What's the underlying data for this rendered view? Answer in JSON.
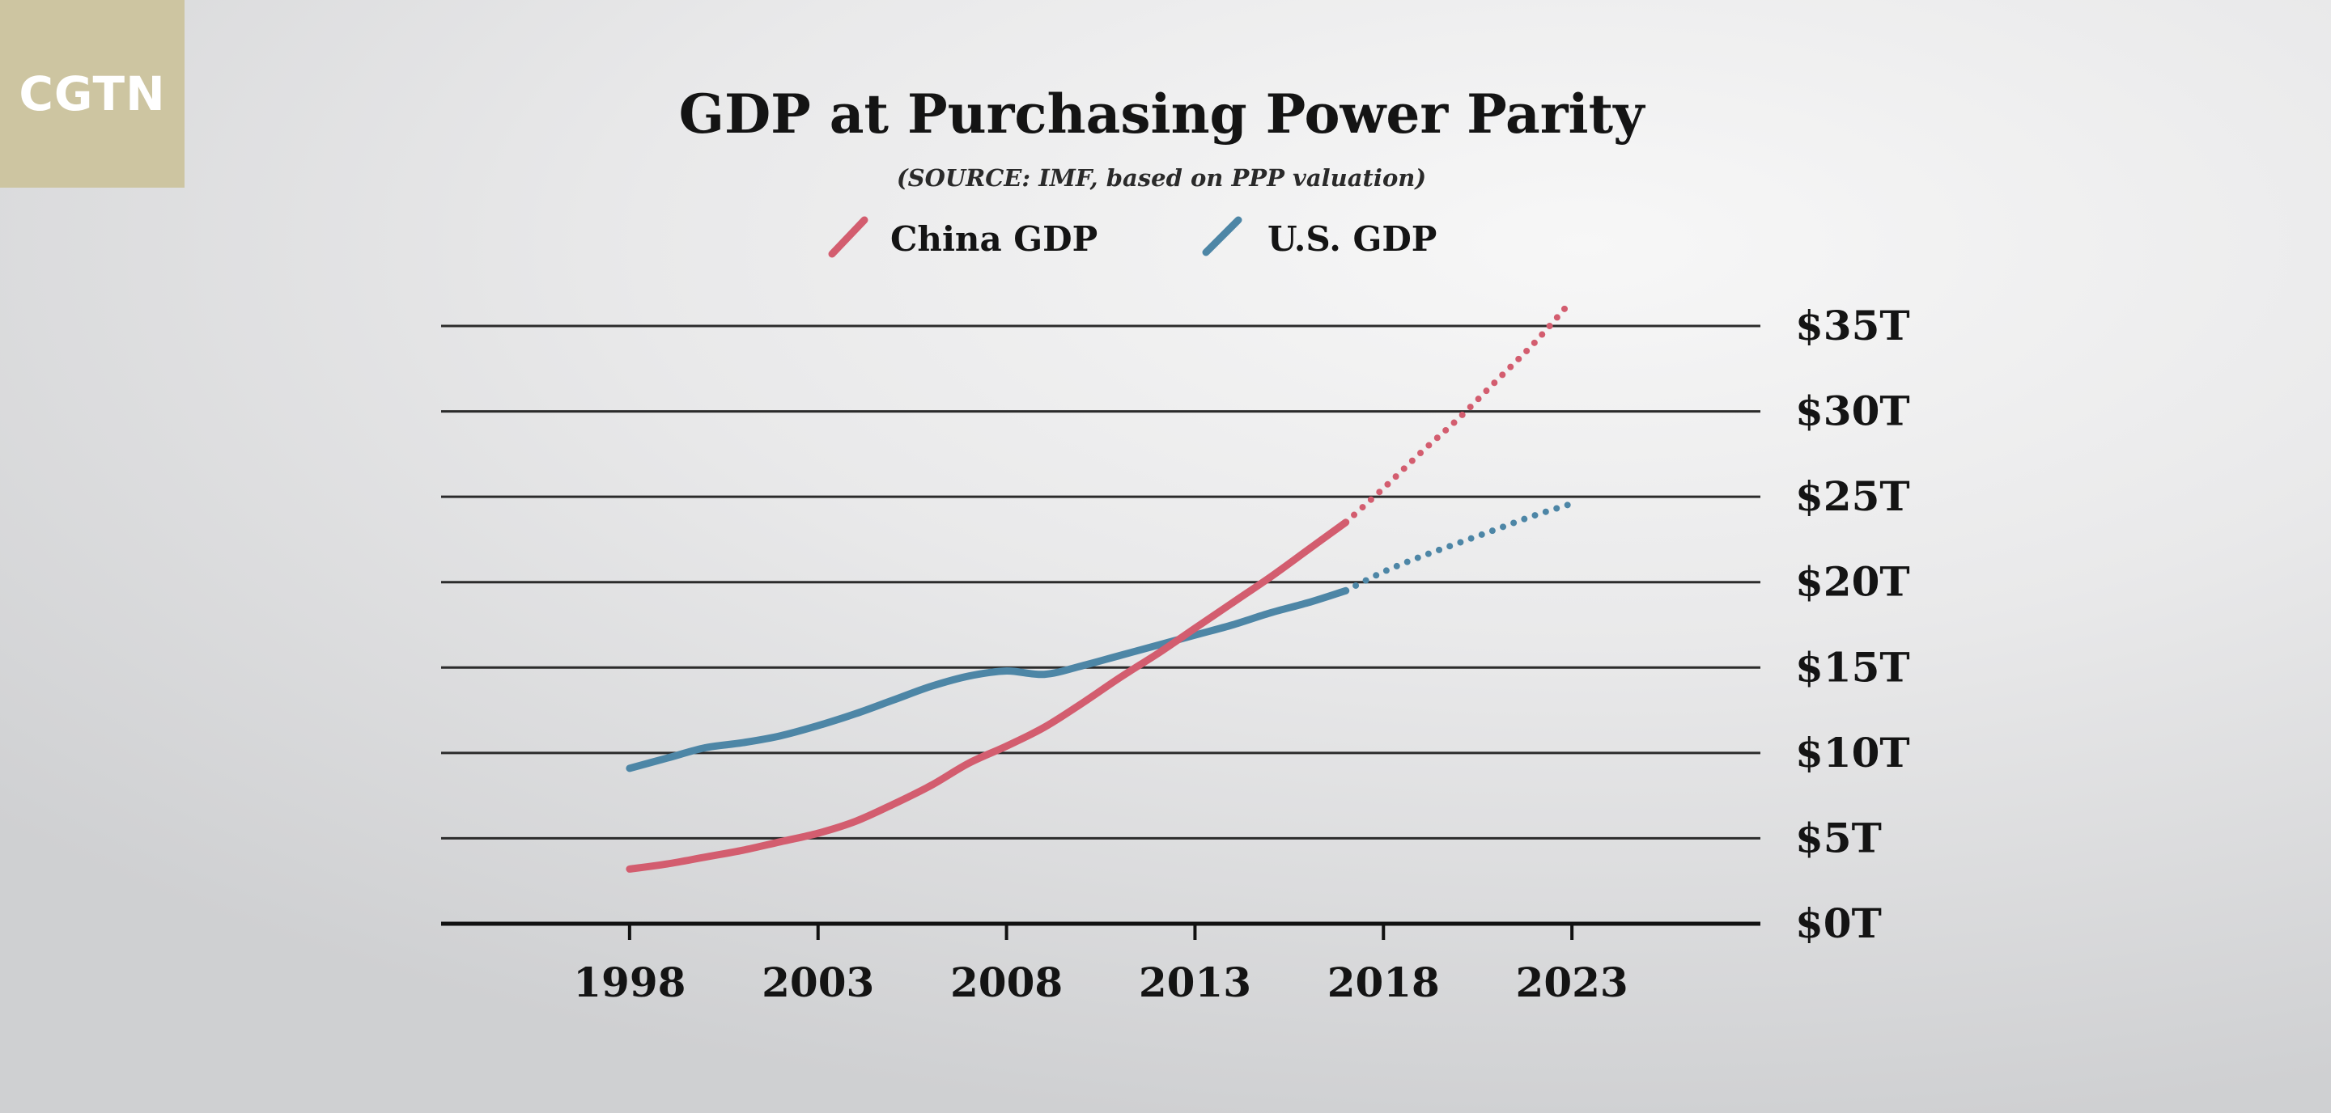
{
  "logo": {
    "text": "CGTN"
  },
  "colors": {
    "china": "#d35d6f",
    "us": "#4d86a6",
    "logo_bg": "#cdc5a1"
  },
  "chart_data": {
    "type": "line",
    "title": "GDP at Purchasing Power Parity",
    "subtitle": "(SOURCE: IMF, based on PPP valuation)",
    "xlabel": "",
    "ylabel": "",
    "x_ticks": [
      1998,
      2003,
      2008,
      2013,
      2018,
      2023
    ],
    "xlim": [
      1993,
      2028
    ],
    "y_ticks": [
      0,
      5,
      10,
      15,
      20,
      25,
      30,
      35
    ],
    "y_tick_labels": [
      "$0T",
      "$5T",
      "$10T",
      "$15T",
      "$20T",
      "$25T",
      "$30T",
      "$35T"
    ],
    "ylim": [
      0,
      35
    ],
    "grid": true,
    "legend_position": "top",
    "series": [
      {
        "name": "China GDP",
        "color": "#d35d6f",
        "actual": [
          [
            1998,
            3.2
          ],
          [
            1999,
            3.5
          ],
          [
            2000,
            3.9
          ],
          [
            2001,
            4.3
          ],
          [
            2002,
            4.8
          ],
          [
            2003,
            5.3
          ],
          [
            2004,
            6.0
          ],
          [
            2005,
            7.0
          ],
          [
            2006,
            8.1
          ],
          [
            2007,
            9.4
          ],
          [
            2008,
            10.4
          ],
          [
            2009,
            11.5
          ],
          [
            2010,
            12.9
          ],
          [
            2011,
            14.4
          ],
          [
            2012,
            15.8
          ],
          [
            2013,
            17.3
          ],
          [
            2014,
            18.8
          ],
          [
            2015,
            20.3
          ],
          [
            2016,
            21.9
          ],
          [
            2017,
            23.5
          ]
        ],
        "projected": [
          [
            2017,
            23.5
          ],
          [
            2018,
            25.5
          ],
          [
            2019,
            27.6
          ],
          [
            2020,
            29.6
          ],
          [
            2021,
            31.8
          ],
          [
            2022,
            34.0
          ],
          [
            2023,
            36.5
          ]
        ]
      },
      {
        "name": "U.S. GDP",
        "color": "#4d86a6",
        "actual": [
          [
            1998,
            9.1
          ],
          [
            1999,
            9.7
          ],
          [
            2000,
            10.3
          ],
          [
            2001,
            10.6
          ],
          [
            2002,
            11.0
          ],
          [
            2003,
            11.6
          ],
          [
            2004,
            12.3
          ],
          [
            2005,
            13.1
          ],
          [
            2006,
            13.9
          ],
          [
            2007,
            14.5
          ],
          [
            2008,
            14.8
          ],
          [
            2009,
            14.6
          ],
          [
            2010,
            15.1
          ],
          [
            2011,
            15.7
          ],
          [
            2012,
            16.3
          ],
          [
            2013,
            16.9
          ],
          [
            2014,
            17.5
          ],
          [
            2015,
            18.2
          ],
          [
            2016,
            18.8
          ],
          [
            2017,
            19.5
          ]
        ],
        "projected": [
          [
            2017,
            19.5
          ],
          [
            2018,
            20.6
          ],
          [
            2019,
            21.5
          ],
          [
            2020,
            22.3
          ],
          [
            2021,
            23.1
          ],
          [
            2022,
            23.9
          ],
          [
            2023,
            24.6
          ]
        ]
      }
    ]
  }
}
